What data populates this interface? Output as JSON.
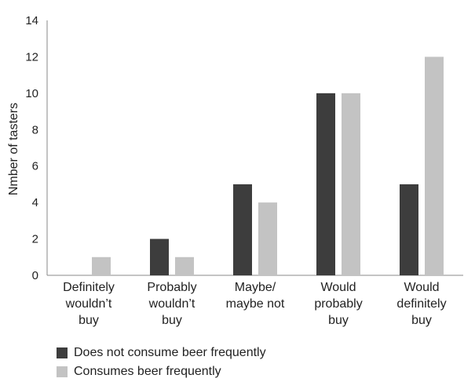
{
  "chart_data": {
    "type": "bar",
    "title": "",
    "xlabel": "",
    "ylabel": "Nmber of tasters",
    "ylim": [
      0,
      14
    ],
    "yticks": [
      0,
      2,
      4,
      6,
      8,
      10,
      12,
      14
    ],
    "grid": false,
    "legend_position": "bottom-left",
    "categories": [
      [
        "Definitely",
        "wouldn’t",
        "buy"
      ],
      [
        "Probably",
        "wouldn’t",
        "buy"
      ],
      [
        "Maybe/",
        "maybe not"
      ],
      [
        "Would",
        "probably",
        "buy"
      ],
      [
        "Would",
        "definitely",
        "buy"
      ]
    ],
    "series": [
      {
        "name": "Does not consume beer frequently",
        "color": "#3d3d3d",
        "values": [
          0,
          2,
          5,
          10,
          5
        ]
      },
      {
        "name": "Consumes beer frequently",
        "color": "#c3c3c3",
        "values": [
          1,
          1,
          4,
          10,
          12
        ]
      }
    ]
  }
}
